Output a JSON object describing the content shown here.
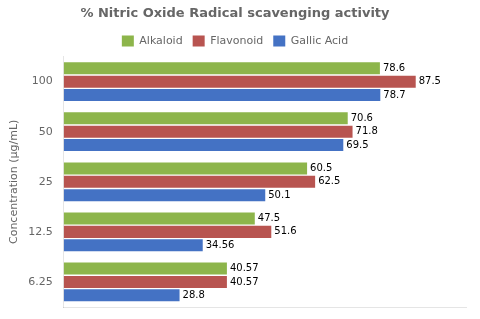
{
  "chart_data": {
    "type": "bar",
    "orientation": "horizontal",
    "title": "% Nitric Oxide Radical scavenging activity",
    "ylabel": "Concentration (μg/mL)",
    "categories": [
      "6.25",
      "12.5",
      "25",
      "50",
      "100"
    ],
    "series": [
      {
        "name": "Alkaloid",
        "color": "#8db54b",
        "values": [
          40.57,
          47.5,
          60.5,
          70.6,
          78.6
        ]
      },
      {
        "name": "Flavonoid",
        "color": "#b85450",
        "values": [
          40.57,
          51.6,
          62.5,
          71.8,
          87.5
        ]
      },
      {
        "name": "Gallic Acid",
        "color": "#4472c4",
        "values": [
          28.8,
          34.56,
          50.1,
          69.5,
          78.7
        ]
      }
    ],
    "xlim": [
      0,
      100
    ],
    "tick_labels": "y",
    "grid": false,
    "legend": "top",
    "data_labels": true
  }
}
